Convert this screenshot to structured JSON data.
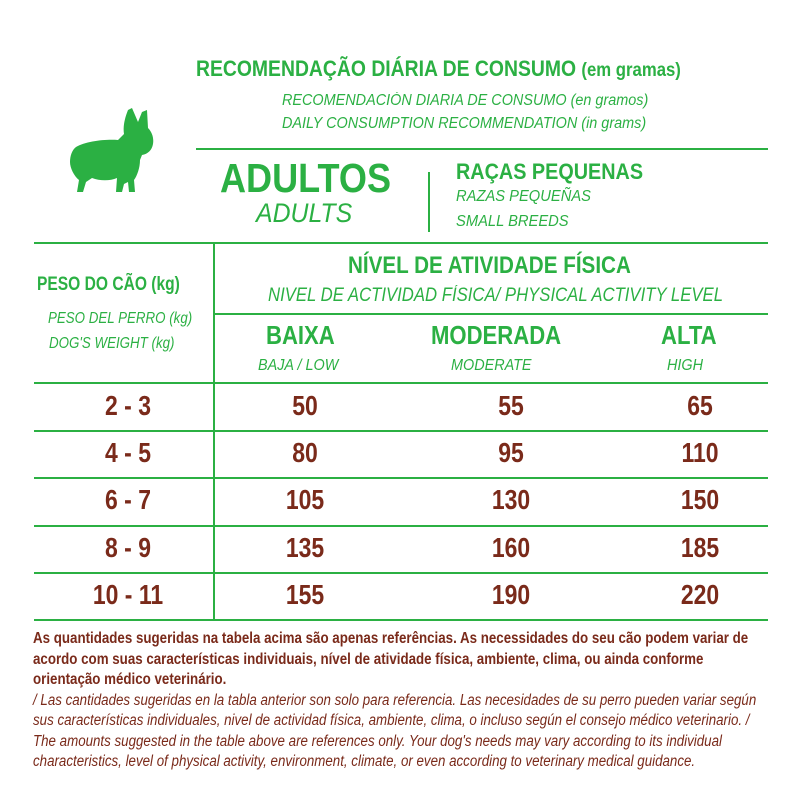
{
  "header": {
    "title_pt": "RECOMENDAÇÃO DIÁRIA DE CONSUMO",
    "title_pt_unit": "(em gramas)",
    "title_es": "RECOMENDACIÓN DIARIA DE CONSUMO (en gramos)",
    "title_en": "DAILY CONSUMPTION RECOMMENDATION (in grams)"
  },
  "dog_icon": "french-bulldog-silhouette",
  "stage": {
    "pt": "ADULTOS",
    "en": "ADULTS"
  },
  "breed": {
    "pt": "RAÇAS PEQUENAS",
    "es": "RAZAS PEQUEÑAS",
    "en": "SMALL BREEDS"
  },
  "table": {
    "weight_header": {
      "pt": "PESO DO CÃO (kg)",
      "es": "PESO DEL PERRO (kg)",
      "en": "DOG'S WEIGHT (kg)"
    },
    "activity_header": {
      "pt": "NÍVEL DE ATIVIDADE FÍSICA",
      "es_en": "NIVEL DE ACTIVIDAD FÍSICA/ PHYSICAL ACTIVITY LEVEL"
    },
    "levels": [
      {
        "pt": "BAIXA",
        "sub": "BAJA / LOW"
      },
      {
        "pt": "MODERADA",
        "sub": "MODERATE"
      },
      {
        "pt": "ALTA",
        "sub": "HIGH"
      }
    ],
    "rows": [
      {
        "weight": "2 - 3",
        "low": "50",
        "moderate": "55",
        "high": "65"
      },
      {
        "weight": "4 - 5",
        "low": "80",
        "moderate": "95",
        "high": "110"
      },
      {
        "weight": "6 - 7",
        "low": "105",
        "moderate": "130",
        "high": "150"
      },
      {
        "weight": "8 - 9",
        "low": "135",
        "moderate": "160",
        "high": "185"
      },
      {
        "weight": "10 - 11",
        "low": "155",
        "moderate": "190",
        "high": "220"
      }
    ]
  },
  "footnote": {
    "pt": "As quantidades sugeridas na tabela acima são apenas referências. As necessidades do seu cão podem variar de acordo com suas características individuais, nível de atividade física, ambiente, clima, ou ainda conforme orientação médico veterinário.",
    "es_en": "/ Las cantidades sugeridas en la tabla anterior son solo para referencia. Las necesidades de su perro pueden variar según sus características individuales, nivel de actividad física, ambiente, clima, o incluso según el consejo médico veterinario. / The amounts suggested in the table above are references only. Your dog's needs may vary according to its individual characteristics, level of physical activity, environment, climate, or even according to veterinary medical guidance."
  },
  "colors": {
    "green": "#2bb043",
    "brown": "#7a2a1a"
  }
}
